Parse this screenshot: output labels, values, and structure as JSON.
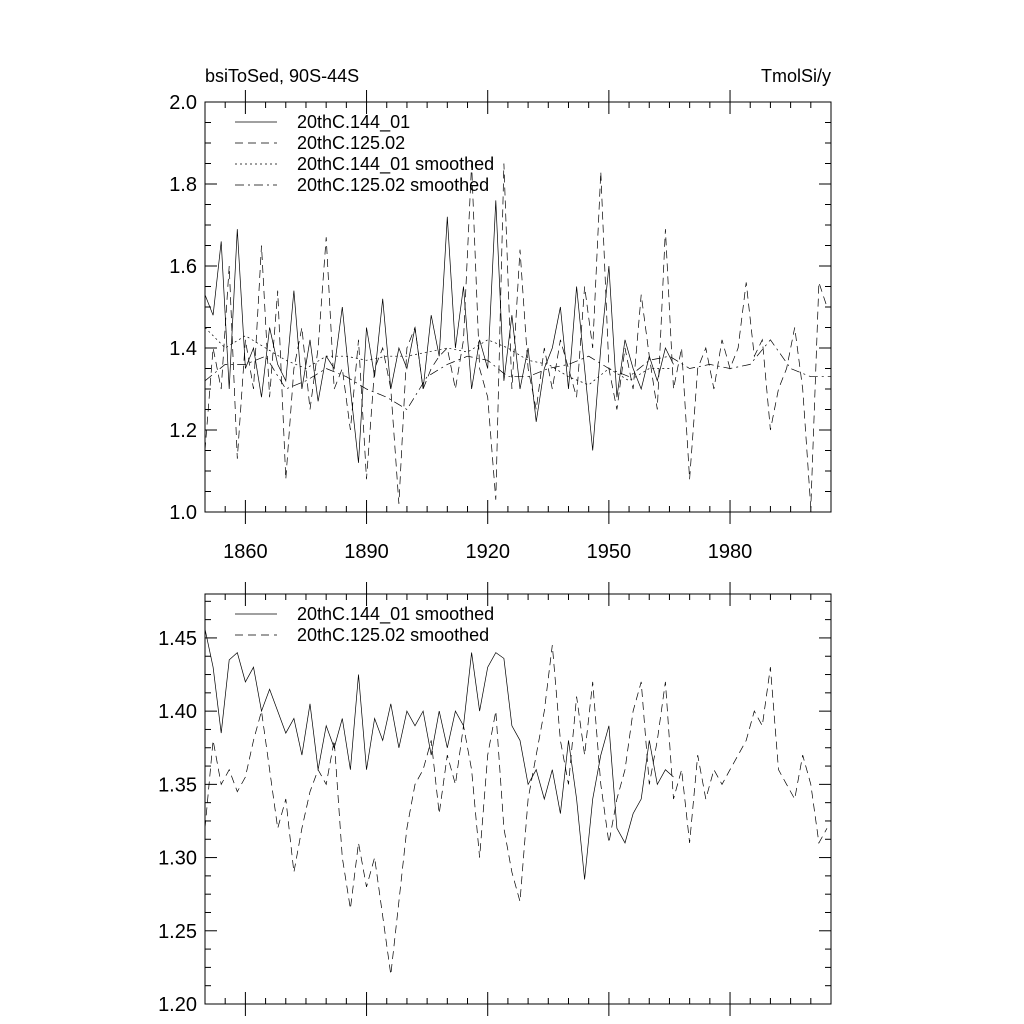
{
  "chart_data": [
    {
      "type": "line",
      "title_left": "bsiToSed, 90S-44S",
      "title_right": "TmolSi/y",
      "xlabel": "",
      "ylabel": "",
      "xlim": [
        1850,
        2005
      ],
      "ylim": [
        1.0,
        2.0
      ],
      "x_ticks": [
        1860,
        1890,
        1920,
        1950,
        1980
      ],
      "x_tick_labels": [
        "1860",
        "1890",
        "1920",
        "1950",
        "1980"
      ],
      "y_ticks": [
        1.0,
        1.2,
        1.4,
        1.6,
        1.8,
        2.0
      ],
      "y_tick_labels": [
        "1.0",
        "1.2",
        "1.4",
        "1.6",
        "1.8",
        "2.0"
      ],
      "legend_position": "top-left",
      "series": [
        {
          "name": "20thC.144_01",
          "style": "solid",
          "x": [
            1850,
            1852,
            1854,
            1856,
            1858,
            1860,
            1862,
            1864,
            1866,
            1868,
            1870,
            1872,
            1874,
            1876,
            1878,
            1880,
            1882,
            1884,
            1886,
            1888,
            1890,
            1892,
            1894,
            1896,
            1898,
            1900,
            1902,
            1904,
            1906,
            1908,
            1910,
            1912,
            1914,
            1916,
            1918,
            1920,
            1922,
            1924,
            1926,
            1928,
            1930,
            1932,
            1934,
            1936,
            1938,
            1940,
            1942,
            1944,
            1946,
            1948,
            1950,
            1952,
            1954,
            1956,
            1958,
            1960,
            1962,
            1964,
            1966
          ],
          "values": [
            1.53,
            1.48,
            1.66,
            1.3,
            1.69,
            1.35,
            1.4,
            1.28,
            1.45,
            1.36,
            1.32,
            1.54,
            1.3,
            1.42,
            1.27,
            1.38,
            1.35,
            1.5,
            1.3,
            1.12,
            1.45,
            1.33,
            1.52,
            1.3,
            1.4,
            1.35,
            1.45,
            1.3,
            1.48,
            1.38,
            1.72,
            1.4,
            1.55,
            1.3,
            1.42,
            1.35,
            1.76,
            1.32,
            1.48,
            1.3,
            1.4,
            1.22,
            1.35,
            1.4,
            1.5,
            1.3,
            1.55,
            1.35,
            1.15,
            1.4,
            1.6,
            1.28,
            1.42,
            1.35,
            1.3,
            1.38,
            1.32,
            1.4,
            1.36
          ]
        },
        {
          "name": "20thC.125.02",
          "style": "dashed",
          "x": [
            1850,
            1852,
            1854,
            1856,
            1858,
            1860,
            1862,
            1864,
            1866,
            1868,
            1870,
            1872,
            1874,
            1876,
            1878,
            1880,
            1882,
            1884,
            1886,
            1888,
            1890,
            1892,
            1894,
            1896,
            1898,
            1900,
            1902,
            1904,
            1906,
            1908,
            1910,
            1912,
            1914,
            1916,
            1918,
            1920,
            1922,
            1924,
            1926,
            1928,
            1930,
            1932,
            1934,
            1936,
            1938,
            1940,
            1942,
            1944,
            1946,
            1948,
            1950,
            1952,
            1954,
            1956,
            1958,
            1960,
            1962,
            1964,
            1966,
            1968,
            1970,
            1972,
            1974,
            1976,
            1978,
            1980,
            1982,
            1984,
            1986,
            1988,
            1990,
            1992,
            1994,
            1996,
            1998,
            2000,
            2002,
            2004
          ],
          "values": [
            1.15,
            1.4,
            1.3,
            1.6,
            1.13,
            1.42,
            1.3,
            1.65,
            1.28,
            1.54,
            1.08,
            1.35,
            1.45,
            1.25,
            1.4,
            1.67,
            1.3,
            1.35,
            1.2,
            1.42,
            1.08,
            1.35,
            1.4,
            1.3,
            1.02,
            1.4,
            1.45,
            1.3,
            1.35,
            1.38,
            1.4,
            1.3,
            1.42,
            1.85,
            1.35,
            1.28,
            1.03,
            1.85,
            1.3,
            1.64,
            1.35,
            1.25,
            1.4,
            1.3,
            1.42,
            1.35,
            1.28,
            1.55,
            1.4,
            1.83,
            1.35,
            1.25,
            1.4,
            1.3,
            1.53,
            1.38,
            1.25,
            1.69,
            1.3,
            1.4,
            1.08,
            1.35,
            1.4,
            1.3,
            1.42,
            1.35,
            1.4,
            1.56,
            1.38,
            1.42,
            1.2,
            1.3,
            1.35,
            1.45,
            1.3,
            1.01,
            1.56,
            1.5
          ]
        },
        {
          "name": "20thC.144_01 smoothed",
          "style": "dotted",
          "x": [
            1850,
            1855,
            1860,
            1865,
            1870,
            1875,
            1880,
            1885,
            1890,
            1895,
            1900,
            1905,
            1910,
            1915,
            1920,
            1925,
            1930,
            1935,
            1940,
            1945,
            1950,
            1955,
            1960,
            1965
          ],
          "values": [
            1.45,
            1.4,
            1.43,
            1.4,
            1.37,
            1.35,
            1.38,
            1.38,
            1.37,
            1.38,
            1.38,
            1.39,
            1.4,
            1.39,
            1.42,
            1.4,
            1.37,
            1.36,
            1.33,
            1.31,
            1.35,
            1.32,
            1.35,
            1.35
          ]
        },
        {
          "name": "20thC.125.02 smoothed",
          "style": "dashdot",
          "x": [
            1850,
            1855,
            1860,
            1865,
            1870,
            1875,
            1880,
            1885,
            1890,
            1895,
            1900,
            1905,
            1910,
            1915,
            1920,
            1925,
            1930,
            1935,
            1940,
            1945,
            1950,
            1955,
            1960,
            1965,
            1970,
            1975,
            1980,
            1985,
            1990,
            1995,
            2000,
            2005
          ],
          "values": [
            1.32,
            1.36,
            1.36,
            1.38,
            1.3,
            1.32,
            1.35,
            1.33,
            1.3,
            1.28,
            1.25,
            1.33,
            1.36,
            1.38,
            1.37,
            1.33,
            1.33,
            1.35,
            1.36,
            1.38,
            1.35,
            1.33,
            1.37,
            1.38,
            1.35,
            1.36,
            1.35,
            1.36,
            1.42,
            1.35,
            1.33,
            1.33
          ]
        }
      ]
    },
    {
      "type": "line",
      "title": "",
      "xlabel": "",
      "ylabel": "",
      "xlim": [
        1850,
        2005
      ],
      "ylim": [
        1.2,
        1.48
      ],
      "x_ticks": [
        1860,
        1890,
        1920,
        1950,
        1980
      ],
      "y_ticks": [
        1.2,
        1.25,
        1.3,
        1.35,
        1.4,
        1.45
      ],
      "y_tick_labels": [
        "1.20",
        "1.25",
        "1.30",
        "1.35",
        "1.40",
        "1.45"
      ],
      "legend_position": "top-left",
      "series": [
        {
          "name": "20thC.144_01 smoothed",
          "style": "solid",
          "x": [
            1850,
            1852,
            1854,
            1856,
            1858,
            1860,
            1862,
            1864,
            1866,
            1868,
            1870,
            1872,
            1874,
            1876,
            1878,
            1880,
            1882,
            1884,
            1886,
            1888,
            1890,
            1892,
            1894,
            1896,
            1898,
            1900,
            1902,
            1904,
            1906,
            1908,
            1910,
            1912,
            1914,
            1916,
            1918,
            1920,
            1922,
            1924,
            1926,
            1928,
            1930,
            1932,
            1934,
            1936,
            1938,
            1940,
            1942,
            1944,
            1946,
            1948,
            1950,
            1952,
            1954,
            1956,
            1958,
            1960,
            1962,
            1964,
            1966
          ],
          "values": [
            1.456,
            1.43,
            1.385,
            1.435,
            1.44,
            1.42,
            1.43,
            1.4,
            1.415,
            1.4,
            1.385,
            1.395,
            1.37,
            1.405,
            1.36,
            1.39,
            1.375,
            1.395,
            1.36,
            1.425,
            1.36,
            1.395,
            1.38,
            1.405,
            1.375,
            1.4,
            1.39,
            1.4,
            1.37,
            1.4,
            1.375,
            1.4,
            1.39,
            1.44,
            1.4,
            1.43,
            1.44,
            1.436,
            1.39,
            1.38,
            1.35,
            1.36,
            1.34,
            1.36,
            1.33,
            1.38,
            1.34,
            1.285,
            1.34,
            1.37,
            1.39,
            1.32,
            1.31,
            1.33,
            1.34,
            1.38,
            1.35,
            1.36,
            1.355
          ]
        },
        {
          "name": "20thC.125.02 smoothed",
          "style": "dashed",
          "x": [
            1850,
            1852,
            1854,
            1856,
            1858,
            1860,
            1862,
            1864,
            1866,
            1868,
            1870,
            1872,
            1874,
            1876,
            1878,
            1880,
            1882,
            1884,
            1886,
            1888,
            1890,
            1892,
            1894,
            1896,
            1898,
            1900,
            1902,
            1904,
            1906,
            1908,
            1910,
            1912,
            1914,
            1916,
            1918,
            1920,
            1922,
            1924,
            1926,
            1928,
            1930,
            1932,
            1934,
            1936,
            1938,
            1940,
            1942,
            1944,
            1946,
            1948,
            1950,
            1952,
            1954,
            1956,
            1958,
            1960,
            1962,
            1964,
            1966,
            1968,
            1970,
            1972,
            1974,
            1976,
            1978,
            1980,
            1982,
            1984,
            1986,
            1988,
            1990,
            1992,
            1994,
            1996,
            1998,
            2000,
            2002,
            2004
          ],
          "values": [
            1.32,
            1.38,
            1.35,
            1.36,
            1.345,
            1.355,
            1.38,
            1.4,
            1.36,
            1.32,
            1.34,
            1.29,
            1.32,
            1.345,
            1.36,
            1.35,
            1.38,
            1.3,
            1.265,
            1.31,
            1.28,
            1.3,
            1.26,
            1.22,
            1.27,
            1.32,
            1.35,
            1.36,
            1.38,
            1.33,
            1.37,
            1.35,
            1.39,
            1.36,
            1.3,
            1.37,
            1.4,
            1.32,
            1.29,
            1.27,
            1.34,
            1.37,
            1.4,
            1.445,
            1.38,
            1.35,
            1.41,
            1.37,
            1.42,
            1.35,
            1.31,
            1.34,
            1.36,
            1.4,
            1.42,
            1.35,
            1.38,
            1.42,
            1.34,
            1.36,
            1.31,
            1.37,
            1.34,
            1.36,
            1.35,
            1.36,
            1.37,
            1.38,
            1.4,
            1.39,
            1.43,
            1.36,
            1.35,
            1.34,
            1.37,
            1.35,
            1.31,
            1.32
          ]
        }
      ]
    }
  ]
}
